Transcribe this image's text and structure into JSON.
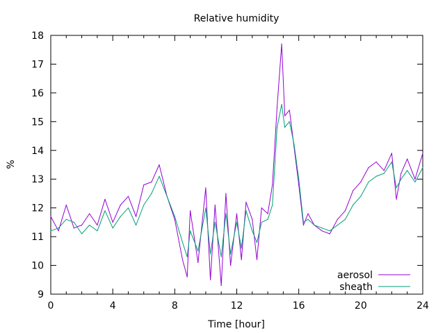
{
  "chart_data": {
    "type": "line",
    "title": "Relative humidity",
    "xlabel": "Time [hour]",
    "ylabel": "%",
    "xlim": [
      0,
      24
    ],
    "ylim": [
      9,
      18
    ],
    "xticks": [
      0,
      4,
      8,
      12,
      16,
      20,
      24
    ],
    "yticks": [
      9,
      10,
      11,
      12,
      13,
      14,
      15,
      16,
      17,
      18
    ],
    "xminor_step": 1,
    "grid": false,
    "legend_position": "bottom-right",
    "series": [
      {
        "name": "aerosol",
        "color": "#9400d3",
        "x": [
          0,
          0.5,
          1,
          1.5,
          2,
          2.5,
          3,
          3.5,
          4,
          4.5,
          5,
          5.5,
          6,
          6.5,
          7,
          7.5,
          8,
          8.5,
          8.8,
          9,
          9.5,
          10,
          10.3,
          10.6,
          11,
          11.3,
          11.6,
          12,
          12.3,
          12.6,
          13,
          13.3,
          13.6,
          14,
          14.3,
          14.6,
          14.9,
          15.1,
          15.4,
          15.7,
          16,
          16.3,
          16.6,
          17,
          17.5,
          18,
          18.5,
          19,
          19.5,
          20,
          20.5,
          21,
          21.5,
          22,
          22.3,
          22.6,
          23,
          23.5,
          24
        ],
        "values": [
          11.7,
          11.2,
          12.1,
          11.3,
          11.4,
          11.8,
          11.4,
          12.3,
          11.5,
          12.1,
          12.4,
          11.7,
          12.8,
          12.9,
          13.5,
          12.4,
          11.6,
          10.2,
          9.6,
          11.9,
          10.1,
          12.7,
          9.5,
          12.1,
          9.3,
          12.5,
          10.0,
          11.8,
          10.2,
          12.2,
          11.6,
          10.2,
          12.0,
          11.8,
          12.8,
          15.5,
          17.7,
          15.2,
          15.4,
          14.1,
          12.8,
          11.4,
          11.8,
          11.4,
          11.2,
          11.1,
          11.6,
          11.9,
          12.6,
          12.9,
          13.4,
          13.6,
          13.3,
          13.9,
          12.3,
          13.2,
          13.7,
          13.0,
          13.9
        ]
      },
      {
        "name": "sheath",
        "color": "#009e73",
        "x": [
          0,
          0.5,
          1,
          1.5,
          2,
          2.5,
          3,
          3.5,
          4,
          4.5,
          5,
          5.5,
          6,
          6.5,
          7,
          7.5,
          8,
          8.5,
          8.8,
          9,
          9.5,
          10,
          10.3,
          10.6,
          11,
          11.3,
          11.6,
          12,
          12.3,
          12.6,
          13,
          13.3,
          13.6,
          14,
          14.3,
          14.6,
          14.9,
          15.1,
          15.4,
          15.7,
          16,
          16.3,
          16.6,
          17,
          17.5,
          18,
          18.5,
          19,
          19.5,
          20,
          20.5,
          21,
          21.5,
          22,
          22.3,
          22.6,
          23,
          23.5,
          24
        ],
        "values": [
          11.2,
          11.3,
          11.6,
          11.5,
          11.1,
          11.4,
          11.2,
          11.9,
          11.3,
          11.7,
          12.0,
          11.4,
          12.1,
          12.5,
          13.1,
          12.4,
          11.7,
          10.8,
          10.3,
          11.2,
          10.5,
          12.0,
          10.4,
          11.5,
          10.3,
          11.8,
          10.4,
          11.5,
          10.6,
          11.9,
          11.2,
          10.8,
          11.5,
          11.6,
          12.1,
          14.8,
          15.6,
          14.8,
          15.0,
          14.2,
          13.0,
          11.5,
          11.6,
          11.4,
          11.3,
          11.2,
          11.4,
          11.6,
          12.1,
          12.4,
          12.9,
          13.1,
          13.2,
          13.6,
          12.7,
          13.0,
          13.3,
          12.9,
          13.4
        ]
      }
    ]
  }
}
